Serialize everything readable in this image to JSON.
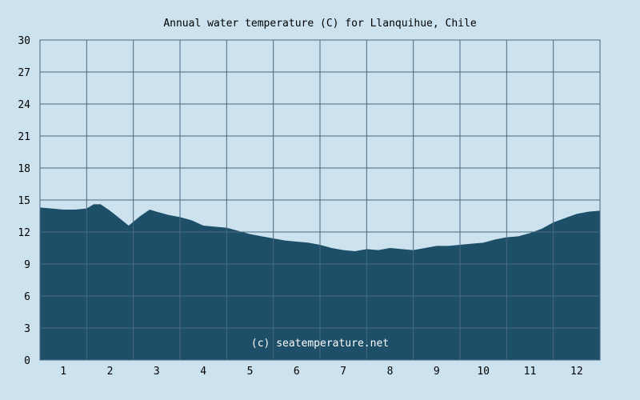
{
  "colors": {
    "background": "#cce3ef",
    "area_fill": "#1d4f69",
    "grid": "#4a6880"
  },
  "chart_data": {
    "type": "area",
    "title": "Annual water temperature (C) for Llanquihue, Chile",
    "xlabel": "",
    "ylabel": "",
    "ylim": [
      0,
      30
    ],
    "xlim": [
      0.5,
      12.5
    ],
    "grid": true,
    "y_ticks": [
      "0",
      "3",
      "6",
      "9",
      "12",
      "15",
      "18",
      "21",
      "24",
      "27",
      "30"
    ],
    "x_ticks": [
      "1",
      "2",
      "3",
      "4",
      "5",
      "6",
      "7",
      "8",
      "9",
      "10",
      "11",
      "12"
    ],
    "watermark": "(c) seatemperature.net",
    "series": [
      {
        "x": [
          0.5,
          0.75,
          1.0,
          1.25,
          1.5,
          1.65,
          1.8,
          2.0,
          2.2,
          2.4,
          2.65,
          2.85,
          3.0,
          3.25,
          3.5,
          3.75,
          4.0,
          4.25,
          4.5,
          4.75,
          5.0,
          5.25,
          5.5,
          5.75,
          6.0,
          6.25,
          6.5,
          6.75,
          7.0,
          7.25,
          7.5,
          7.75,
          8.0,
          8.25,
          8.5,
          8.75,
          9.0,
          9.25,
          9.5,
          9.75,
          10.0,
          10.25,
          10.5,
          10.75,
          11.0,
          11.25,
          11.5,
          11.75,
          12.0,
          12.25,
          12.5
        ],
        "y": [
          14.3,
          14.2,
          14.1,
          14.1,
          14.2,
          14.6,
          14.6,
          14.0,
          13.3,
          12.6,
          13.5,
          14.1,
          13.9,
          13.6,
          13.4,
          13.1,
          12.6,
          12.5,
          12.4,
          12.1,
          11.8,
          11.6,
          11.4,
          11.2,
          11.1,
          11.0,
          10.8,
          10.5,
          10.3,
          10.2,
          10.4,
          10.3,
          10.5,
          10.4,
          10.3,
          10.5,
          10.7,
          10.7,
          10.8,
          10.9,
          11.0,
          11.3,
          11.5,
          11.6,
          11.9,
          12.3,
          12.9,
          13.3,
          13.7,
          13.9,
          14.0
        ]
      }
    ]
  }
}
